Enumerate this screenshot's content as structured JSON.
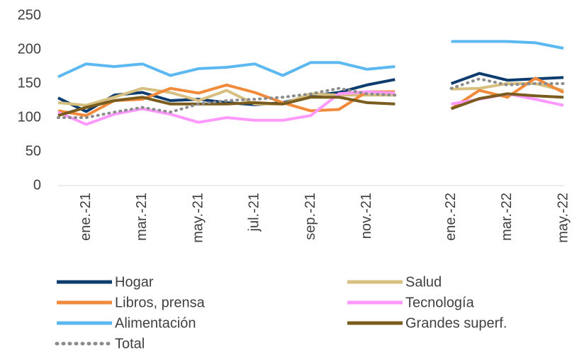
{
  "chart_data": {
    "type": "line",
    "categories": [
      null,
      "ene.-21",
      null,
      "mar.-21",
      null,
      "may.-21",
      null,
      "jul.-21",
      null,
      "sep.-21",
      null,
      "nov.-21",
      null,
      null,
      "ene.-22",
      null,
      "mar.-22",
      null,
      "may.-22"
    ],
    "series": [
      {
        "name": "Hogar",
        "color": "#0d3c6e",
        "values": [
          129,
          109,
          133,
          137,
          125,
          127,
          122,
          119,
          122,
          132,
          137,
          148,
          156,
          null,
          150,
          165,
          155,
          157,
          159
        ]
      },
      {
        "name": "Salud",
        "color": "#d6bf7f",
        "values": [
          122,
          118,
          130,
          143,
          137,
          125,
          140,
          120,
          120,
          135,
          133,
          133,
          133,
          null,
          142,
          143,
          150,
          150,
          140
        ]
      },
      {
        "name": "Libros, prensa",
        "color": "#f28a3c",
        "values": [
          110,
          103,
          125,
          127,
          143,
          136,
          148,
          137,
          122,
          110,
          112,
          138,
          138,
          null,
          113,
          140,
          130,
          158,
          137
        ]
      },
      {
        "name": "Tecnología",
        "color": "#ff99ff",
        "values": [
          108,
          90,
          105,
          113,
          105,
          93,
          100,
          96,
          96,
          103,
          135,
          138,
          136,
          null,
          120,
          127,
          135,
          127,
          118
        ]
      },
      {
        "name": "Alimentación",
        "color": "#5cb8f0",
        "values": [
          160,
          179,
          175,
          179,
          162,
          172,
          174,
          179,
          162,
          181,
          181,
          171,
          175,
          null,
          212,
          212,
          212,
          210,
          202
        ]
      },
      {
        "name": "Grandes superf.",
        "color": "#7a5c1e",
        "values": [
          103,
          115,
          125,
          130,
          120,
          120,
          120,
          122,
          120,
          130,
          130,
          122,
          120,
          null,
          113,
          128,
          135,
          132,
          130
        ]
      },
      {
        "name": "Total",
        "color": "#8c8c8c",
        "line_style": "dotted",
        "values": [
          100,
          100,
          108,
          115,
          108,
          120,
          125,
          127,
          130,
          135,
          143,
          135,
          133,
          null,
          143,
          157,
          148,
          150,
          150
        ]
      }
    ],
    "ylim": [
      0,
      250
    ],
    "yticks": [
      0,
      50,
      100,
      150,
      200,
      250
    ]
  }
}
